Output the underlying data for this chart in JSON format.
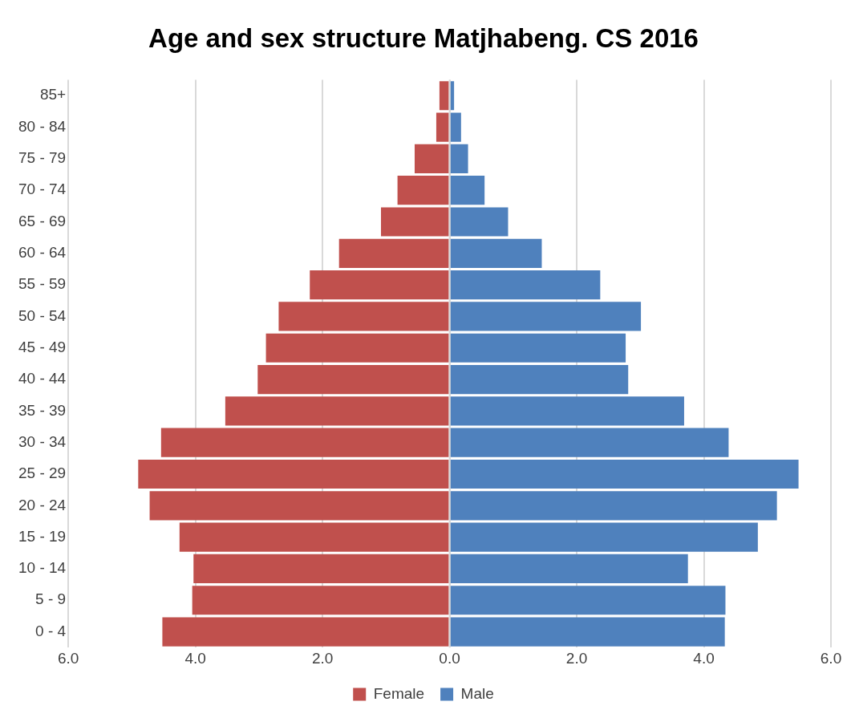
{
  "chart_data": {
    "type": "bar",
    "title": "Age and sex structure Matjhabeng. CS 2016",
    "orientation": "horizontal",
    "stacked": true,
    "categories": [
      "85+",
      "80 - 84",
      "75 - 79",
      "70 - 74",
      "65 - 69",
      "60 - 64",
      "55 - 59",
      "50 - 54",
      "45 - 49",
      "40 - 44",
      "35 - 39",
      "30 - 34",
      "25 - 29",
      "20 - 24",
      "15 - 19",
      "10 - 14",
      "5 - 9",
      "0 - 4"
    ],
    "series": [
      {
        "name": "Female",
        "color": "#c0504d",
        "values": [
          -0.16,
          -0.21,
          -0.55,
          -0.82,
          -1.08,
          -1.74,
          -2.2,
          -2.69,
          -2.89,
          -3.02,
          -3.53,
          -4.54,
          -4.9,
          -4.72,
          -4.25,
          -4.03,
          -4.05,
          -4.52
        ]
      },
      {
        "name": "Male",
        "color": "#4f81bd",
        "values": [
          0.07,
          0.18,
          0.29,
          0.55,
          0.92,
          1.45,
          2.37,
          3.01,
          2.77,
          2.81,
          3.69,
          4.39,
          5.49,
          5.15,
          4.85,
          3.75,
          4.34,
          4.33
        ]
      }
    ],
    "xlim": [
      -6,
      6
    ],
    "xticks": [
      {
        "value": -6,
        "label": "6.0"
      },
      {
        "value": -4,
        "label": "4.0"
      },
      {
        "value": -2,
        "label": "2.0"
      },
      {
        "value": 0,
        "label": "0.0"
      },
      {
        "value": 2,
        "label": "2.0"
      },
      {
        "value": 4,
        "label": "4.0"
      },
      {
        "value": 6,
        "label": "6.0"
      }
    ],
    "grid": "x",
    "legend": "bottom"
  }
}
